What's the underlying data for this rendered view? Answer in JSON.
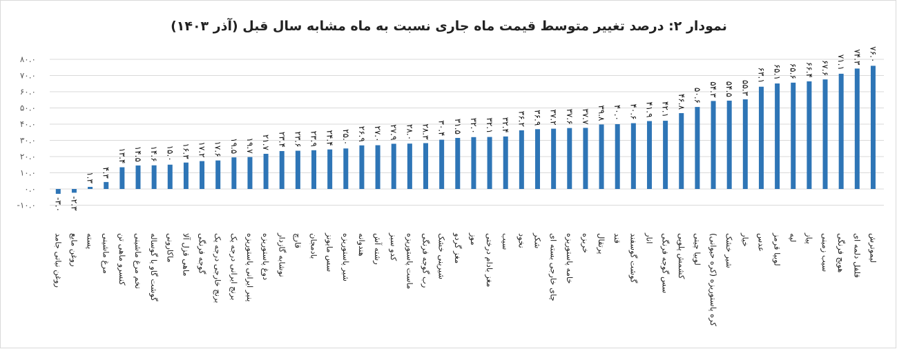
{
  "chart_data": {
    "type": "bar",
    "title": "نمودار ۲: درصد تغییر متوسط قیمت ماه جاری نسبت به ماه مشابه سال قبل (آذر ۱۴۰۳)",
    "xlabel": "",
    "ylabel": "",
    "ylim": [
      -10,
      80
    ],
    "y_ticks": [
      -10,
      0,
      10,
      20,
      30,
      40,
      50,
      60,
      70,
      80
    ],
    "grid": true,
    "legend": "none",
    "bar_color": "#2E75B6",
    "categories": [
      "روغن نباتی جامد",
      "روغن مایع",
      "پسته",
      "مرغ ماشینی",
      "کنسرو ماهی تن",
      "تخم مرغ ماشینی",
      "گوشت گاو یا گوساله",
      "ماکارونی",
      "ماهی قزل آلا",
      "گوجه فرنگی",
      "برنج خارجی درجه یک",
      "برنج ایرانی درجه یک",
      "پنیر ایرانی پاستوریزه",
      "دوغ پاستوریزه",
      "نوشابه گازدار",
      "قارچ",
      "بادمجان",
      "سس مایونز",
      "شیر پاستوریزه",
      "هندوانه",
      "رشته آش",
      "کدو سبز",
      "ماست پاستوریزه",
      "رب گوجه فرنگی",
      "شیرینی خشک",
      "مغز گردو",
      "موز",
      "مغز بادام درختی",
      "سیب",
      "نخود",
      "شکر",
      "چای خارجی بسته ای",
      "خامه پاستوریزه",
      "خربزه",
      "پرتقال",
      "قند",
      "گوشت گوسفند",
      "انار",
      "سس گوجه فرنگی",
      "کشمش پلویی",
      "لوبیا چیتی",
      "کره پاستوریزه (کره حیوانی)",
      "شیر خشک",
      "خیار",
      "عدس",
      "لوبیا قرمز",
      "لپه",
      "پیاز",
      "سیب زمینی",
      "هویج فرنگی",
      "فلفل دلمه ای",
      "لیموترش"
    ],
    "values": [
      -3.0,
      -2.3,
      1.3,
      4.3,
      13.4,
      14.5,
      14.6,
      15.0,
      16.3,
      17.2,
      17.6,
      19.5,
      19.7,
      21.7,
      23.4,
      23.6,
      23.9,
      24.4,
      25.0,
      26.9,
      27.0,
      27.9,
      28.0,
      28.3,
      30.4,
      31.5,
      32.0,
      32.1,
      32.4,
      36.2,
      36.9,
      37.2,
      37.6,
      37.7,
      39.8,
      40.0,
      40.6,
      41.9,
      42.1,
      46.8,
      50.6,
      54.3,
      54.5,
      55.3,
      63.1,
      65.1,
      65.6,
      66.4,
      67.6,
      71.1,
      74.3,
      76.0
    ]
  }
}
